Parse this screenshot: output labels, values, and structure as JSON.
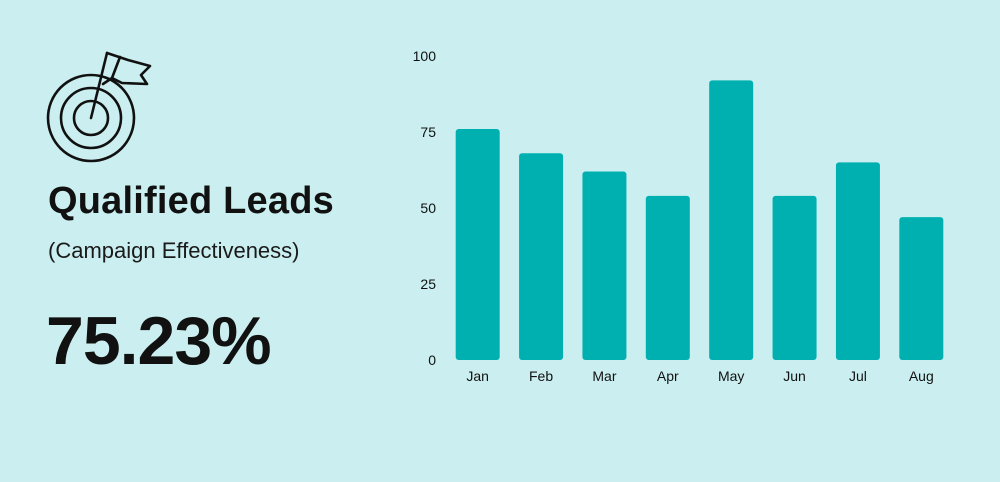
{
  "header": {
    "title": "Qualified Leads",
    "subtitle": "(Campaign Effectiveness)",
    "metric": "75.23%"
  },
  "icons": {
    "main": "target-flag-icon"
  },
  "colors": {
    "background": "#cbeff0",
    "bar": "#00b0b1",
    "text": "#111111"
  },
  "chart_data": {
    "type": "bar",
    "categories": [
      "Jan",
      "Feb",
      "Mar",
      "Apr",
      "May",
      "Jun",
      "Jul",
      "Aug"
    ],
    "values": [
      76,
      68,
      62,
      54,
      92,
      54,
      65,
      47
    ],
    "yticks": [
      0,
      25,
      50,
      75,
      100
    ],
    "ylim": [
      0,
      100
    ],
    "grid": false,
    "legend": false,
    "title": "",
    "xlabel": "",
    "ylabel": ""
  }
}
